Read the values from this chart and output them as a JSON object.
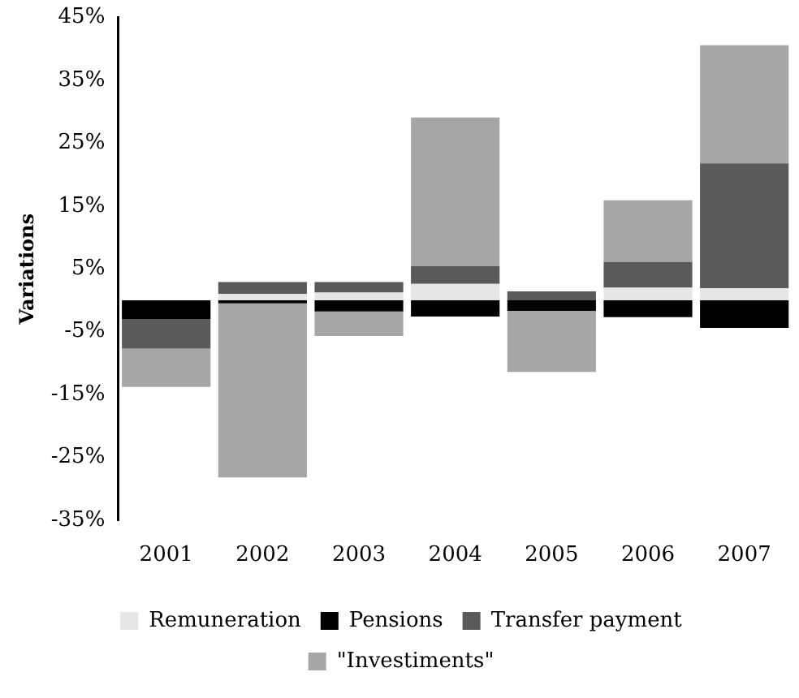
{
  "chart_data": {
    "type": "bar",
    "stacked": true,
    "ylabel": "Variations",
    "categories": [
      "2001",
      "2002",
      "2003",
      "2004",
      "2005",
      "2006",
      "2007"
    ],
    "series": [
      {
        "name": "Remuneration",
        "color": "#e6e6e6",
        "values": [
          0,
          1,
          1.2,
          2.6,
          0,
          2.0,
          1.9
        ]
      },
      {
        "name": "Pensions",
        "color": "#000000",
        "values": [
          -3,
          -0.5,
          -1.8,
          -2.6,
          -1.7,
          -2.7,
          -4.4
        ]
      },
      {
        "name": "Transfer payment",
        "color": "#5a5a5a",
        "values": [
          -4.7,
          1.9,
          1.7,
          2.8,
          1.4,
          4.1,
          19.9
        ]
      },
      {
        "name": "\"Investiments\"",
        "color": "#a6a6a6",
        "values": [
          -6.1,
          -27.7,
          -3.9,
          23.7,
          -9.7,
          9.8,
          18.8
        ]
      }
    ],
    "ylim": [
      -35,
      45
    ],
    "yticks": [
      {
        "value": -35,
        "label": "-35%"
      },
      {
        "value": -25,
        "label": "-25%"
      },
      {
        "value": -15,
        "label": "-15%"
      },
      {
        "value": -5,
        "label": "-5%"
      },
      {
        "value": 5,
        "label": "5%"
      },
      {
        "value": 15,
        "label": "15%"
      },
      {
        "value": 25,
        "label": "25%"
      },
      {
        "value": 35,
        "label": "35%"
      },
      {
        "value": 45,
        "label": "45%"
      }
    ],
    "grid": false,
    "legend": "bottom"
  }
}
